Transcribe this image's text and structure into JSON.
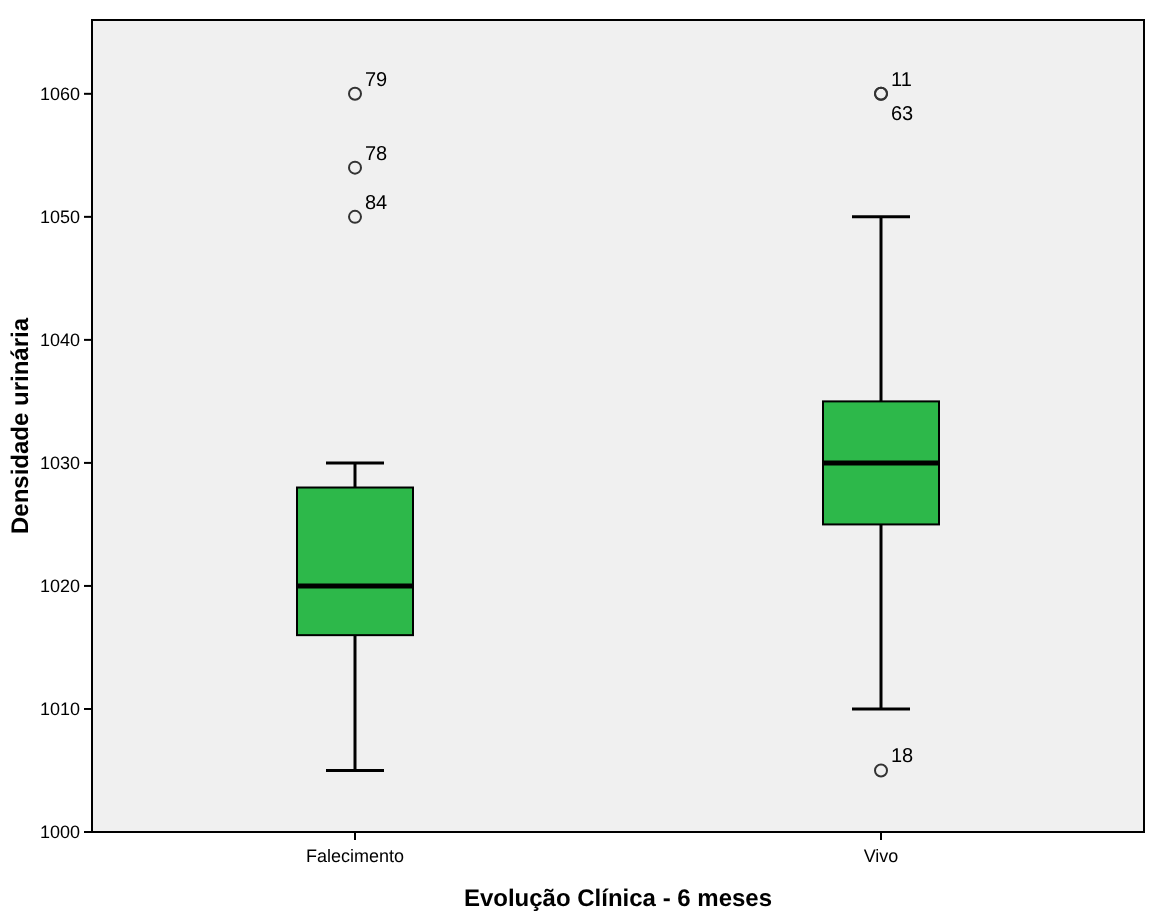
{
  "chart_data": {
    "type": "box",
    "xlabel": "Evolução Clínica - 6 meses",
    "ylabel": "Densidade urinária",
    "categories": [
      "Falecimento",
      "Vivo"
    ],
    "color": "#2db84a",
    "boxes": [
      {
        "low": 1005,
        "q1": 1016,
        "median": 1020,
        "q3": 1028,
        "high": 1030,
        "outliers": [
          1060,
          1054,
          1050
        ]
      },
      {
        "low": 1010,
        "q1": 1025,
        "median": 1030,
        "q3": 1035,
        "high": 1050,
        "outliers": [
          1060,
          1060,
          1005
        ]
      }
    ],
    "ylim": [
      1000,
      1066
    ],
    "yticks": [
      1000,
      1010,
      1020,
      1030,
      1040,
      1050,
      1060
    ],
    "grid": false,
    "annotations": [
      "79",
      "78",
      "84",
      "11",
      "63",
      "18"
    ]
  }
}
